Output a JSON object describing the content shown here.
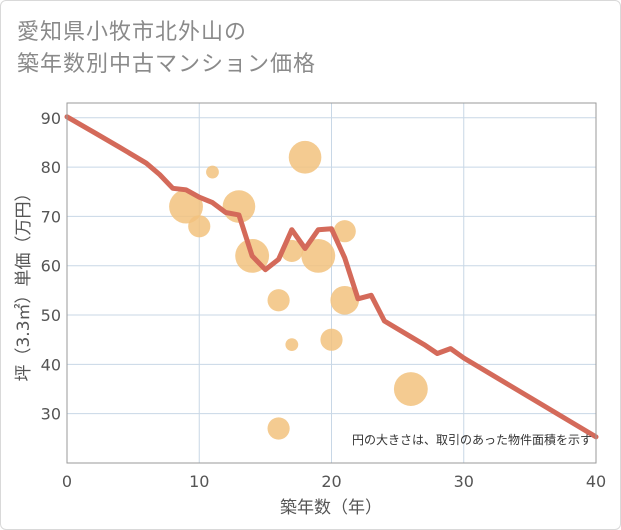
{
  "title_line1": "愛知県小牧市北外山の",
  "title_line2": "築年数別中古マンション価格",
  "chart_data": {
    "type": "scatter",
    "xlabel": "築年数（年）",
    "ylabel": "坪（3.3㎡）単価（万円）",
    "xlim": [
      0,
      40
    ],
    "ylim": [
      20,
      93
    ],
    "xticks": [
      0,
      10,
      20,
      30,
      40
    ],
    "yticks": [
      30,
      40,
      50,
      60,
      70,
      80,
      90
    ],
    "grid": true,
    "note": "円の大きさは、取引のあった物件面積を示す",
    "colors": {
      "bubble": "#f2c27e",
      "line": "#d46a5a",
      "grid": "#c8d7e6",
      "frame": "#9a9a9a"
    },
    "bubbles": [
      {
        "x": 9,
        "y": 72,
        "size": 28
      },
      {
        "x": 10,
        "y": 68,
        "size": 12
      },
      {
        "x": 11,
        "y": 79,
        "size": 4
      },
      {
        "x": 13,
        "y": 72,
        "size": 26
      },
      {
        "x": 14,
        "y": 62,
        "size": 28
      },
      {
        "x": 16,
        "y": 53,
        "size": 12
      },
      {
        "x": 16,
        "y": 27,
        "size": 12
      },
      {
        "x": 17,
        "y": 63,
        "size": 12
      },
      {
        "x": 17,
        "y": 44,
        "size": 4
      },
      {
        "x": 18,
        "y": 82,
        "size": 26
      },
      {
        "x": 19,
        "y": 62,
        "size": 28
      },
      {
        "x": 20,
        "y": 45,
        "size": 12
      },
      {
        "x": 21,
        "y": 67,
        "size": 12
      },
      {
        "x": 21,
        "y": 53,
        "size": 20
      },
      {
        "x": 26,
        "y": 35,
        "size": 28
      }
    ],
    "line": {
      "x": [
        0,
        2,
        4,
        6,
        7,
        8,
        9,
        10,
        11,
        12,
        13,
        14,
        15,
        16,
        17,
        18,
        19,
        20,
        21,
        22,
        23,
        24,
        25,
        26,
        27,
        28,
        29,
        30,
        40
      ],
      "y": [
        90.2,
        87.1,
        84.0,
        80.8,
        78.5,
        75.7,
        75.4,
        73.9,
        72.8,
        70.8,
        70.3,
        62.0,
        59.2,
        61.3,
        67.3,
        63.5,
        67.3,
        67.5,
        61.6,
        53.3,
        54.0,
        48.8,
        47.2,
        45.6,
        44.0,
        42.2,
        43.2,
        41.3,
        25.3
      ]
    }
  }
}
